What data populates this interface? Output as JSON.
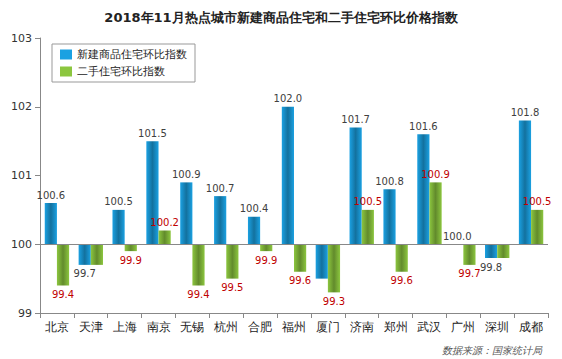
{
  "chart_data": {
    "type": "bar",
    "title": "2018年11月热点城市新建商品住宅和二手住宅环比价格指数",
    "categories": [
      "北京",
      "天津",
      "上海",
      "南京",
      "无锡",
      "杭州",
      "合肥",
      "福州",
      "厦门",
      "济南",
      "郑州",
      "武汉",
      "广州",
      "深圳",
      "成都"
    ],
    "baseline": 100,
    "series": [
      {
        "name": "新建商品住宅环比指数",
        "color": "#1ba1e2",
        "values": [
          100.6,
          99.7,
          100.5,
          101.5,
          100.9,
          100.7,
          100.4,
          102.0,
          99.5,
          101.7,
          100.8,
          101.6,
          100.0,
          99.8,
          101.8
        ],
        "value_labels": [
          "100.6",
          "99.7",
          "100.5",
          "101.5",
          "100.9",
          "100.7",
          "100.4",
          "102.0",
          null,
          "101.7",
          "100.8",
          "101.6",
          "100.0",
          "99.8",
          "101.8"
        ]
      },
      {
        "name": "二手住宅环比指数",
        "color": "#8cc63f",
        "values": [
          99.4,
          99.7,
          99.9,
          100.2,
          99.4,
          99.5,
          99.9,
          99.6,
          99.3,
          100.5,
          99.6,
          100.9,
          99.7,
          99.8,
          100.5
        ],
        "value_labels": [
          "99.4",
          null,
          "99.9",
          "100.2",
          "99.4",
          "99.5",
          "99.9",
          "99.6",
          "99.3",
          "100.5",
          "99.6",
          "100.9",
          "99.7",
          null,
          "100.5"
        ]
      }
    ],
    "ylim": [
      99,
      103
    ],
    "yticks": [
      99,
      100,
      101,
      102,
      103
    ],
    "grid": false,
    "legend": "upper left",
    "data_labels": true,
    "annotations": [
      "数据来源：国家统计局"
    ]
  }
}
